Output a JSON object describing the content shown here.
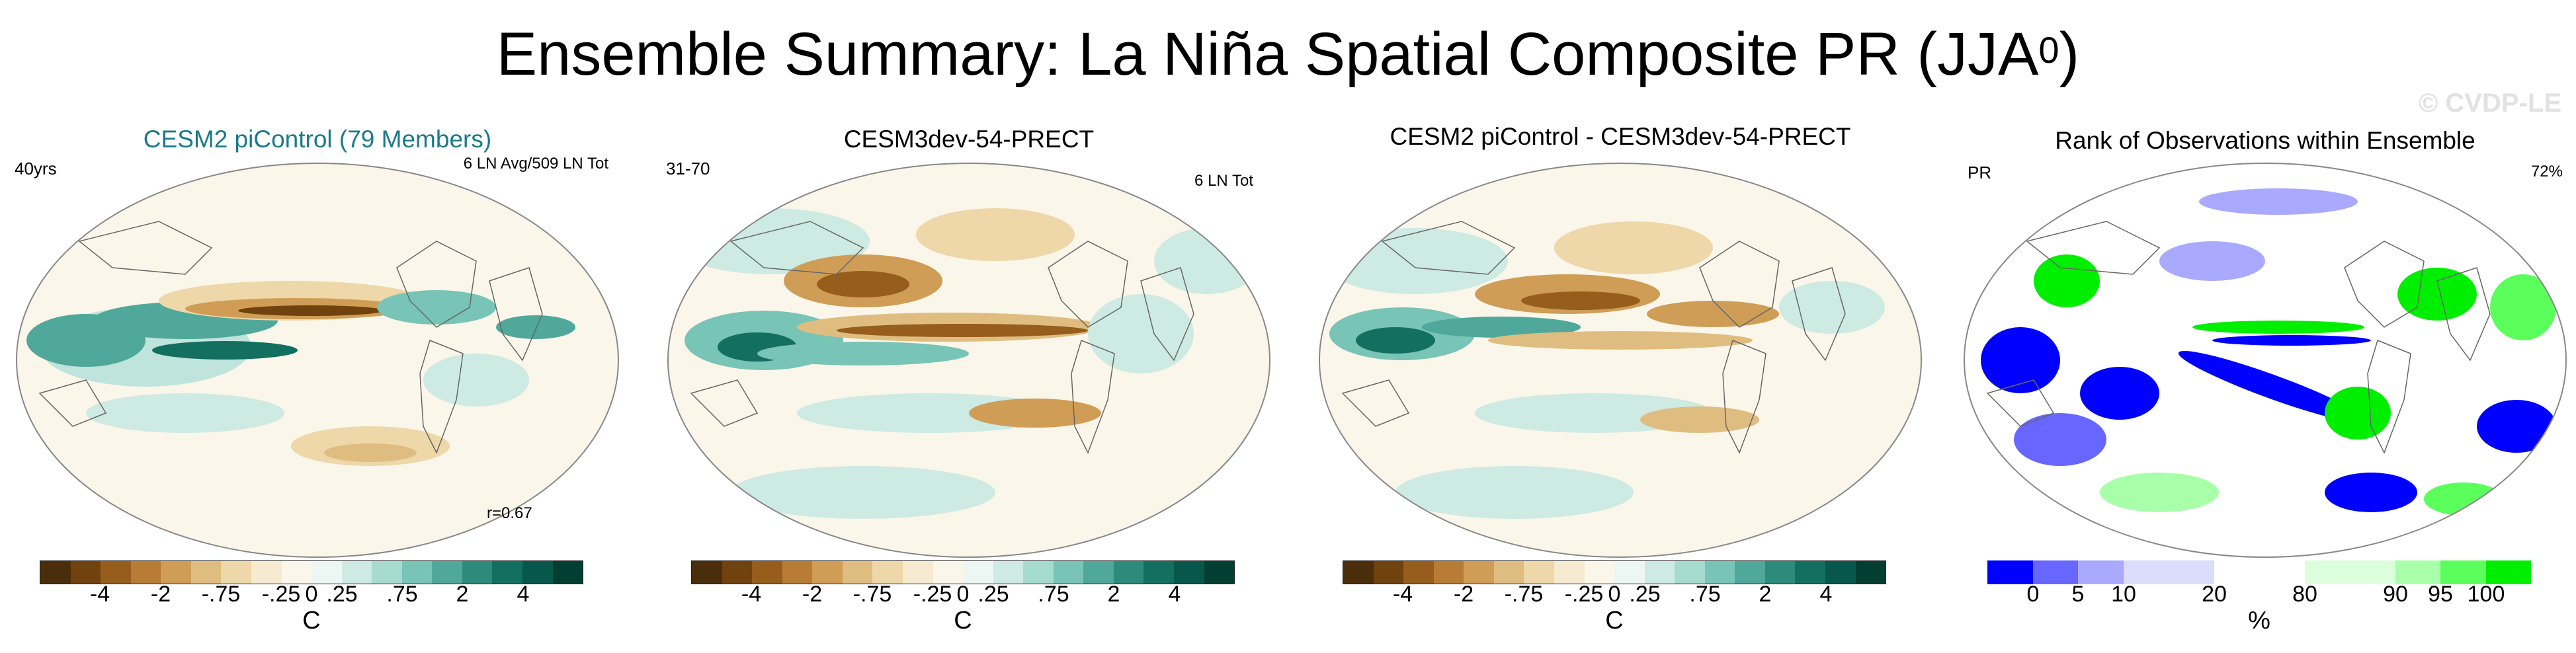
{
  "title": {
    "main": "Ensemble Summary: La Niña Spatial Composite PR (JJA",
    "sup": "0",
    "close": ")"
  },
  "watermark": "© CVDP-LE",
  "div_colors": [
    "#4a2d0b",
    "#70420e",
    "#975d1c",
    "#b97c34",
    "#cf9d55",
    "#dfbd80",
    "#eed7a8",
    "#f6ebd0",
    "#fbf6ea",
    "#ecf7f4",
    "#cdeae3",
    "#a6dbd0",
    "#78c4b6",
    "#4fa89a",
    "#2c8b7d",
    "#136f60",
    "#07584a",
    "#033e33"
  ],
  "rank_colors": [
    "#0000ff",
    "#6767ff",
    "#a9a9ff",
    "#dcdcff",
    "#dcdcff",
    "#ffffff",
    "#ffffff",
    "#dcffdc",
    "#dcffdc",
    "#a9ffa9",
    "#5bff5b",
    "#00ee00"
  ],
  "panels": [
    {
      "title": "CESM2 piControl (79 Members)",
      "left": "40yrs",
      "right": "6 LN Avg/509 LN Tot",
      "r": "r=0.67",
      "unit": "C"
    },
    {
      "title": "CESM3dev-54-PRECT",
      "left": "31-70",
      "right": "6 LN Tot",
      "unit": "C"
    },
    {
      "title": "CESM2 piControl - CESM3dev-54-PRECT",
      "unit": "C"
    },
    {
      "title": "Rank of Observations within Ensemble",
      "left": "PR",
      "right": "72%",
      "unit": "%"
    }
  ],
  "div_ticks": [
    "-4",
    "-2",
    "-.75",
    "-.25",
    "0",
    ".25",
    ".75",
    "2",
    "4"
  ],
  "rank_ticks": [
    "0",
    "5",
    "10",
    "20",
    "80",
    "90",
    "95",
    "100"
  ]
}
